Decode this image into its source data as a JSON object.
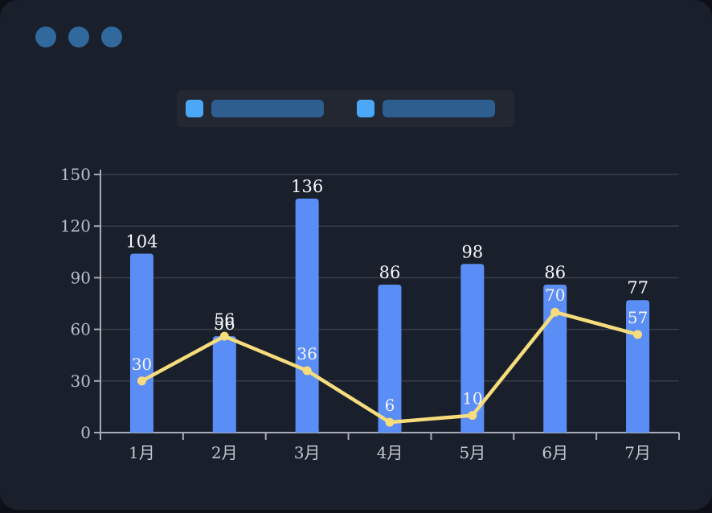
{
  "window": {
    "dot_color": "#31699c",
    "dots": [
      "window-dot-1",
      "window-dot-2",
      "window-dot-3"
    ]
  },
  "legend": {
    "items": [
      {
        "label": "",
        "swatch_color": "#4ba7f7",
        "placeholder_color": "#2e5d8f"
      },
      {
        "label": "",
        "swatch_color": "#4ba7f7",
        "placeholder_color": "#2e5d8f"
      }
    ]
  },
  "chart_data": {
    "type": "bar",
    "categories": [
      "1月",
      "2月",
      "3月",
      "4月",
      "5月",
      "6月",
      "7月"
    ],
    "series": [
      {
        "name": "bar-series",
        "type": "bar",
        "values": [
          104,
          56,
          136,
          86,
          98,
          86,
          77
        ],
        "color": "#5b8df6"
      },
      {
        "name": "line-series",
        "type": "line",
        "values": [
          30,
          56,
          36,
          6,
          10,
          70,
          57
        ],
        "color": "#f6dc7d"
      }
    ],
    "title": "",
    "xlabel": "",
    "ylabel": "",
    "ylim": [
      0,
      150
    ],
    "yticks": [
      0,
      30,
      60,
      90,
      120,
      150
    ],
    "grid": true,
    "legend_position": "top",
    "value_labels": true,
    "colors": {
      "grid_line": "#383d49",
      "axis_line": "#a6abb6",
      "tick_label": "#b9bfca",
      "category_label": "#c2c7d1",
      "value_label": "#f5f7fa"
    }
  }
}
